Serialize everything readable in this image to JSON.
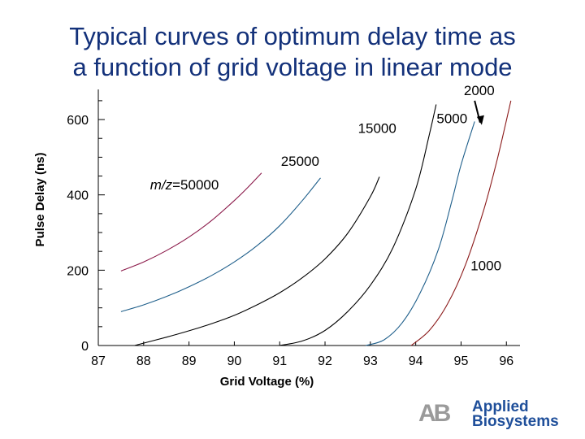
{
  "slide": {
    "title_line1": "Typical curves of optimum delay time as",
    "title_line2": "a function of grid voltage in linear mode"
  },
  "chart_data": {
    "type": "line",
    "title": "Typical curves of optimum delay time as a function of grid voltage in linear mode",
    "xlabel": "Grid Voltage (%)",
    "ylabel": "Pulse Delay (ns)",
    "xlim": [
      87,
      96.3
    ],
    "ylim": [
      0,
      680
    ],
    "x_ticks": [
      87,
      88,
      89,
      90,
      91,
      92,
      93,
      94,
      95,
      96
    ],
    "y_ticks": [
      0,
      200,
      400,
      600
    ],
    "grid": false,
    "series": [
      {
        "name": "m/z=50000",
        "color": "#8b1a4a",
        "points": [
          [
            87.5,
            198
          ],
          [
            88.0,
            222
          ],
          [
            88.5,
            252
          ],
          [
            89.0,
            288
          ],
          [
            89.5,
            332
          ],
          [
            90.0,
            385
          ],
          [
            90.3,
            420
          ],
          [
            90.6,
            458
          ]
        ]
      },
      {
        "name": "25000",
        "color": "#1f5f8b",
        "points": [
          [
            87.5,
            90
          ],
          [
            88.0,
            108
          ],
          [
            88.5,
            130
          ],
          [
            89.0,
            156
          ],
          [
            89.5,
            186
          ],
          [
            90.0,
            222
          ],
          [
            90.5,
            265
          ],
          [
            91.0,
            318
          ],
          [
            91.5,
            385
          ],
          [
            91.9,
            445
          ]
        ]
      },
      {
        "name": "15000",
        "color": "#000000",
        "points": [
          [
            87.8,
            0
          ],
          [
            88.5,
            22
          ],
          [
            89.0,
            39
          ],
          [
            89.5,
            58
          ],
          [
            90.0,
            80
          ],
          [
            90.5,
            108
          ],
          [
            91.0,
            140
          ],
          [
            91.5,
            180
          ],
          [
            92.0,
            230
          ],
          [
            92.5,
            298
          ],
          [
            93.0,
            395
          ],
          [
            93.2,
            448
          ]
        ]
      },
      {
        "name": "5000",
        "color": "#000000",
        "points": [
          [
            91.0,
            0
          ],
          [
            91.5,
            12
          ],
          [
            92.0,
            40
          ],
          [
            92.5,
            90
          ],
          [
            93.0,
            160
          ],
          [
            93.5,
            260
          ],
          [
            94.0,
            415
          ],
          [
            94.3,
            560
          ],
          [
            94.45,
            640
          ]
        ]
      },
      {
        "name": "2000",
        "color": "#1f5f8b",
        "points": [
          [
            92.9,
            0
          ],
          [
            93.3,
            15
          ],
          [
            93.7,
            60
          ],
          [
            94.1,
            140
          ],
          [
            94.5,
            255
          ],
          [
            94.8,
            385
          ],
          [
            95.0,
            480
          ],
          [
            95.3,
            595
          ]
        ]
      },
      {
        "name": "1000",
        "color": "#8b1a1a",
        "points": [
          [
            93.9,
            0
          ],
          [
            94.3,
            40
          ],
          [
            94.7,
            110
          ],
          [
            95.1,
            215
          ],
          [
            95.5,
            360
          ],
          [
            95.8,
            495
          ],
          [
            96.1,
            650
          ]
        ]
      }
    ],
    "annotations": [
      {
        "text": "m/z=50000",
        "x": 88.9,
        "y": 415
      },
      {
        "text": "25000",
        "x": 91.45,
        "y": 477
      },
      {
        "text": "15000",
        "x": 93.15,
        "y": 565
      },
      {
        "text": "5000",
        "x": 94.8,
        "y": 590
      },
      {
        "text": "2000",
        "x": 95.4,
        "y": 665
      },
      {
        "text": "1000",
        "x": 95.55,
        "y": 200
      }
    ]
  },
  "logo": {
    "mark": "AB",
    "line1": "Applied",
    "line2": "Biosystems",
    "color": "#1f4f9a"
  }
}
